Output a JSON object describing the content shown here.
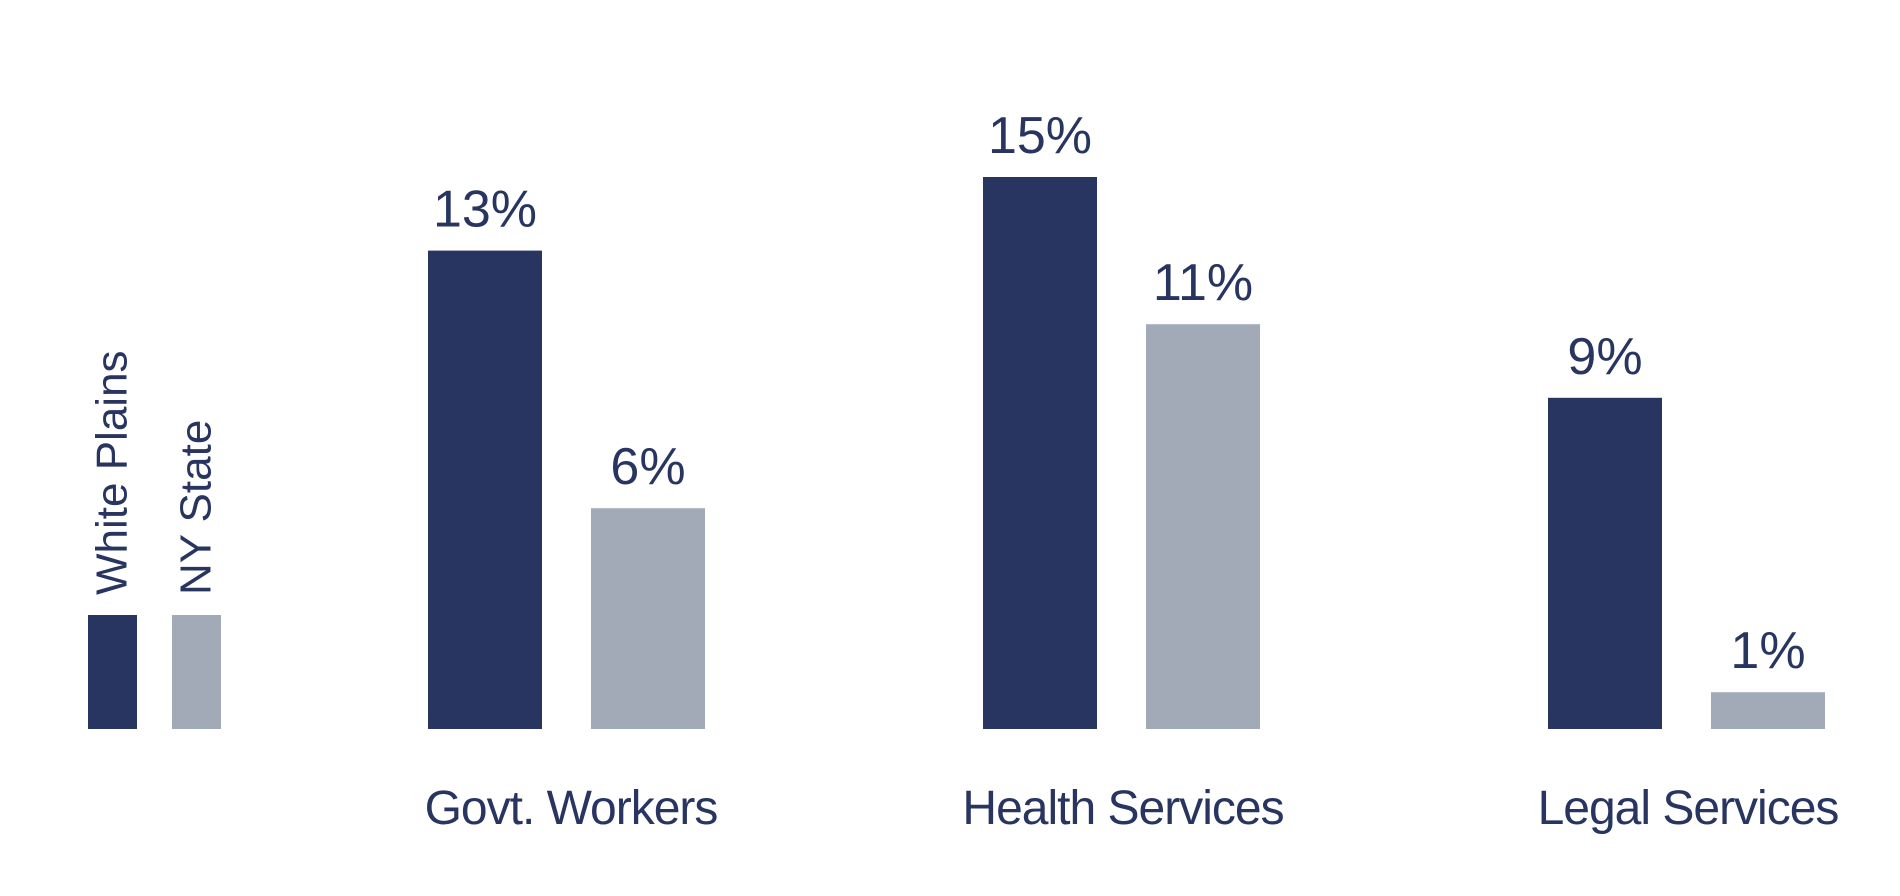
{
  "chart_data": {
    "type": "bar",
    "title": "",
    "xlabel": "",
    "ylabel": "",
    "ylim": [
      0,
      16
    ],
    "grid": false,
    "legend_placement": "left",
    "value_suffix": "%",
    "categories": [
      "Govt. Workers",
      "Health Services",
      "Legal Services"
    ],
    "series": [
      {
        "name": "White Plains",
        "values": [
          13,
          15,
          9
        ],
        "color": "#283561"
      },
      {
        "name": "NY State",
        "values": [
          6,
          11,
          1
        ],
        "color": "#a2aab8"
      }
    ]
  }
}
